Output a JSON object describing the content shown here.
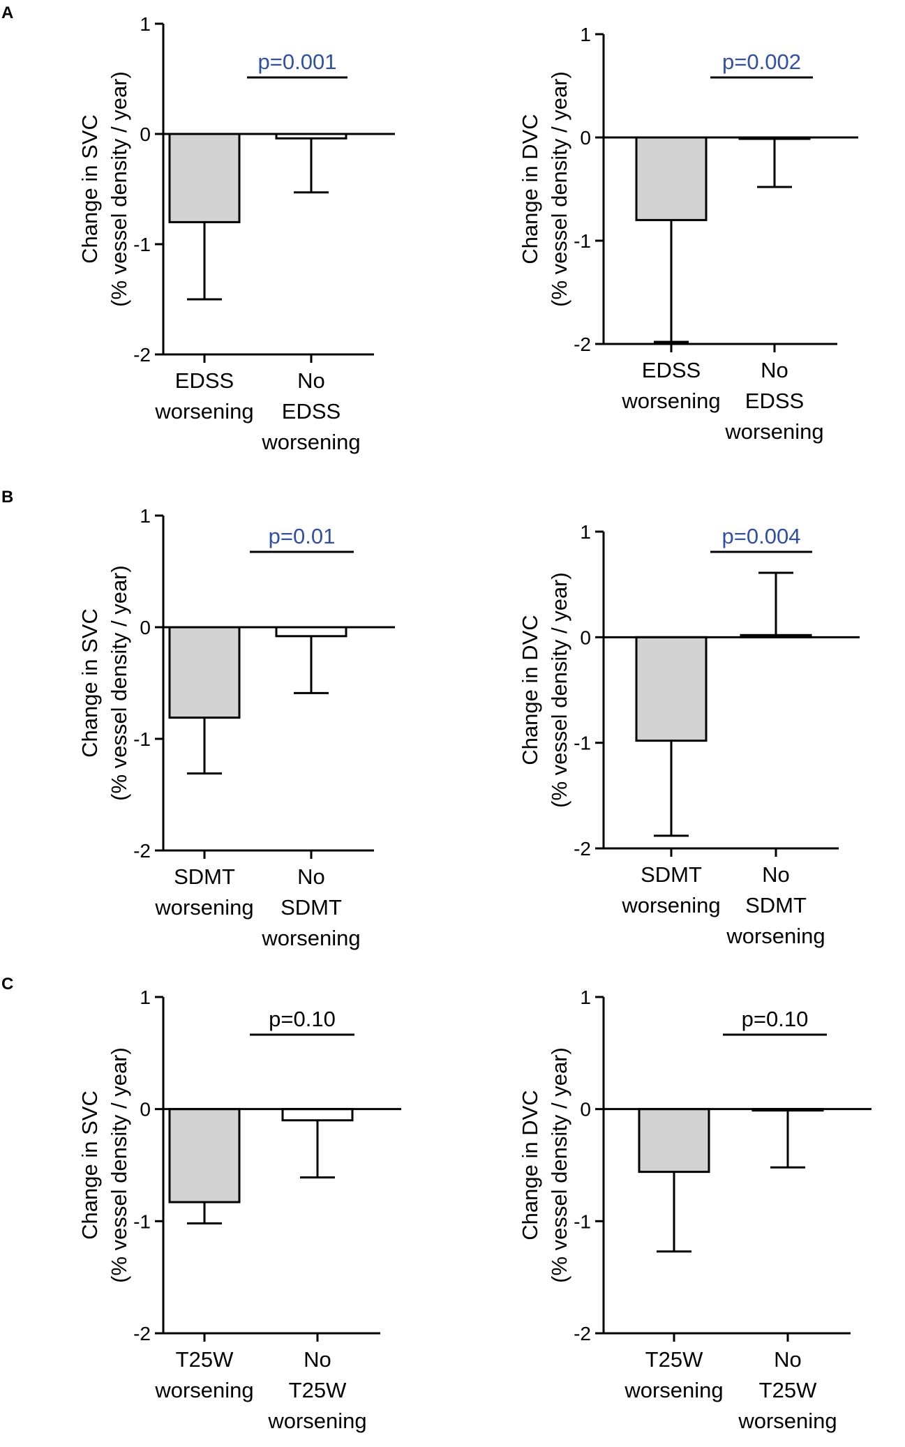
{
  "colors": {
    "axis": "#000000",
    "bar_worsening": "#d3d3d3",
    "bar_no_worsening": "#ffffff",
    "significant_p": "#2f4fa8",
    "nonsignificant_p": "#000000"
  },
  "panels": [
    {
      "label": "A"
    },
    {
      "label": "B"
    },
    {
      "label": "C"
    }
  ],
  "chart_data": [
    {
      "type": "bar",
      "panel": "A",
      "ylim": [
        -2,
        1
      ],
      "yticks": [
        "1",
        "0",
        "-1",
        "-2"
      ],
      "ylabel": [
        "Change in SVC",
        "(% vessel density / year)"
      ],
      "categories": [
        [
          "EDSS",
          "worsening"
        ],
        [
          "No",
          "EDSS",
          "worsening"
        ]
      ],
      "values": [
        -0.8,
        -0.04
      ],
      "error_end": [
        -1.5,
        -0.53
      ],
      "pvalue": "p=0.001",
      "significant": true
    },
    {
      "type": "bar",
      "panel": "A",
      "ylim": [
        -2,
        1
      ],
      "yticks": [
        "1",
        "0",
        "-1",
        "-2"
      ],
      "ylabel": [
        "Change in DVC",
        "(% vessel density / year)"
      ],
      "categories": [
        [
          "EDSS",
          "worsening"
        ],
        [
          "No",
          "EDSS",
          "worsening"
        ]
      ],
      "values": [
        -0.8,
        0.0
      ],
      "error_end": [
        -1.98,
        -0.48
      ],
      "pvalue": "p=0.002",
      "significant": true
    },
    {
      "type": "bar",
      "panel": "B",
      "ylim": [
        -2,
        1
      ],
      "yticks": [
        "1",
        "0",
        "-1",
        "-2"
      ],
      "ylabel": [
        "Change in SVC",
        "(% vessel density / year)"
      ],
      "categories": [
        [
          "SDMT",
          "worsening"
        ],
        [
          "No",
          "SDMT",
          "worsening"
        ]
      ],
      "values": [
        -0.81,
        -0.08
      ],
      "error_end": [
        -1.31,
        -0.59
      ],
      "pvalue": "p=0.01",
      "significant": true
    },
    {
      "type": "bar",
      "panel": "B",
      "ylim": [
        -2,
        1
      ],
      "yticks": [
        "1",
        "0",
        "-1",
        "-2"
      ],
      "ylabel": [
        "Change in DVC",
        "(% vessel density / year)"
      ],
      "categories": [
        [
          "SDMT",
          "worsening"
        ],
        [
          "No",
          "SDMT",
          "worsening"
        ]
      ],
      "values": [
        -0.98,
        0.02
      ],
      "error_end": [
        -1.88,
        0.61
      ],
      "pvalue": "p=0.004",
      "significant": true
    },
    {
      "type": "bar",
      "panel": "C",
      "ylim": [
        -2,
        1
      ],
      "yticks": [
        "1",
        "0",
        "-1",
        "-2"
      ],
      "ylabel": [
        "Change in SVC",
        "(% vessel density / year)"
      ],
      "categories": [
        [
          "T25W",
          "worsening"
        ],
        [
          "No",
          "T25W",
          "worsening"
        ]
      ],
      "values": [
        -0.83,
        -0.1
      ],
      "error_end": [
        -1.02,
        -0.61
      ],
      "pvalue": "p=0.10",
      "significant": false
    },
    {
      "type": "bar",
      "panel": "C",
      "ylim": [
        -2,
        1
      ],
      "yticks": [
        "1",
        "0",
        "-1",
        "-2"
      ],
      "ylabel": [
        "Change in DVC",
        "(% vessel density / year)"
      ],
      "categories": [
        [
          "T25W",
          "worsening"
        ],
        [
          "No",
          "T25W",
          "worsening"
        ]
      ],
      "values": [
        -0.56,
        -0.01
      ],
      "error_end": [
        -1.27,
        -0.52
      ],
      "pvalue": "p=0.10",
      "significant": false
    }
  ]
}
